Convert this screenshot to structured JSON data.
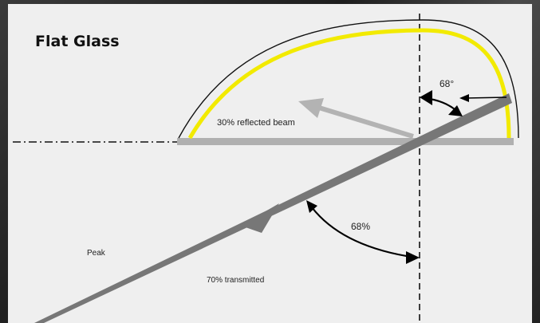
{
  "title": "Flat Glass",
  "labels": {
    "reflected": "30% reflected beam",
    "angle_top": "68°",
    "angle_bottom": "68%",
    "peak": "Peak",
    "transmitted": "70% transmitted"
  },
  "colors": {
    "panel": "#efefef",
    "arc": "#f2ea00",
    "beam": "#777777",
    "reflected_beam": "#b3b3b3",
    "glass": "#b0b0b0",
    "text": "#111111"
  }
}
